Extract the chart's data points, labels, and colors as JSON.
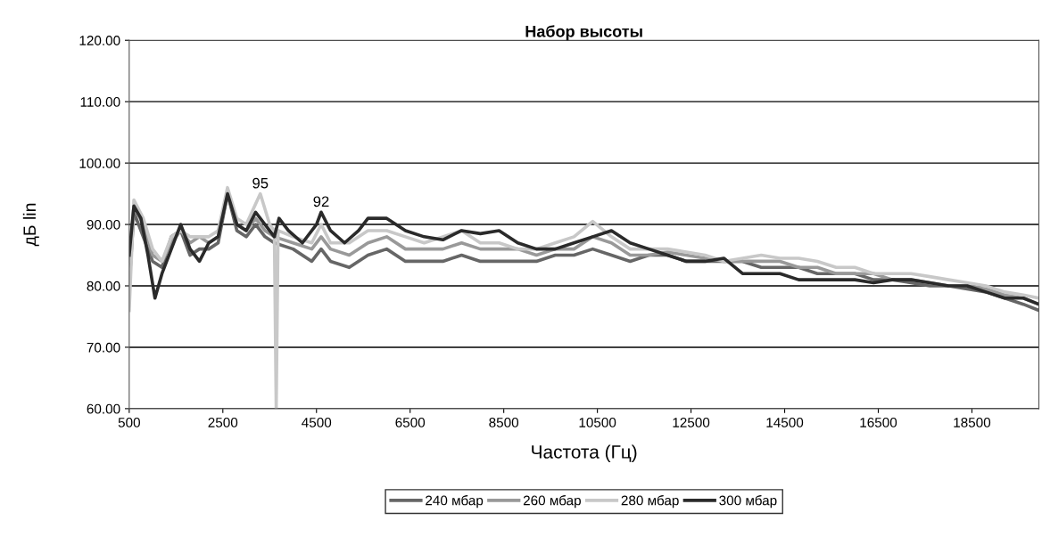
{
  "chart_data": {
    "type": "line",
    "title": "Набор высоты",
    "xlabel": "Частота (Гц)",
    "ylabel": "дБ lin",
    "xlim": [
      500,
      19930
    ],
    "xticks": [
      500,
      2500,
      4500,
      6500,
      8500,
      10500,
      12500,
      14500,
      16500,
      18500
    ],
    "ylim": [
      60,
      120
    ],
    "yticks": [
      {
        "value": 60,
        "label": "60.00"
      },
      {
        "value": 70,
        "label": "70.00"
      },
      {
        "value": 80,
        "label": "80.00"
      },
      {
        "value": 90,
        "label": "90.00"
      },
      {
        "value": 100,
        "label": "100.00"
      },
      {
        "value": 110,
        "label": "110.00"
      },
      {
        "value": 120,
        "label": "120.00"
      }
    ],
    "grid": "y",
    "legend": "bottom",
    "marker": "none",
    "line_style": "solid",
    "annotations": [
      {
        "text": "95",
        "x": 3300,
        "y": 95
      },
      {
        "text": "92",
        "x": 4600,
        "y": 92
      }
    ],
    "series": [
      {
        "name": "240 мбар",
        "color": "#666666",
        "x": [
          500,
          600,
          800,
          1000,
          1200,
          1400,
          1600,
          1800,
          2000,
          2200,
          2400,
          2600,
          2800,
          3000,
          3200,
          3400,
          3600,
          4000,
          4400,
          4600,
          4800,
          5200,
          5600,
          6000,
          6400,
          6800,
          7200,
          7600,
          8000,
          8400,
          8800,
          9200,
          9600,
          10000,
          10400,
          10800,
          11200,
          11600,
          12000,
          12400,
          12800,
          13200,
          13600,
          14000,
          14400,
          14800,
          15200,
          15600,
          16000,
          16400,
          16800,
          17200,
          17600,
          18000,
          18400,
          18800,
          19200,
          19600,
          19930
        ],
        "values": [
          80,
          92,
          88,
          84,
          83,
          88,
          89,
          85,
          86,
          86,
          87,
          95,
          89,
          88,
          90,
          88,
          87,
          86,
          84,
          86,
          84,
          83,
          85,
          86,
          84,
          84,
          84,
          85,
          84,
          84,
          84,
          84,
          85,
          85,
          86,
          85,
          84,
          85,
          85,
          84,
          84,
          84,
          84,
          83,
          83,
          83,
          82,
          82,
          82,
          81,
          81,
          80.5,
          80,
          80,
          79.5,
          79,
          78,
          77,
          76
        ]
      },
      {
        "name": "260 мбар",
        "color": "#999999",
        "x": [
          500,
          600,
          800,
          1000,
          1200,
          1400,
          1600,
          1800,
          2000,
          2200,
          2400,
          2600,
          2800,
          3000,
          3200,
          3400,
          3600,
          4000,
          4400,
          4600,
          4800,
          5200,
          5600,
          6000,
          6400,
          6800,
          7200,
          7600,
          8000,
          8400,
          8800,
          9200,
          9600,
          10000,
          10400,
          10800,
          11200,
          11600,
          12000,
          12400,
          12800,
          13200,
          13600,
          14000,
          14400,
          14800,
          15200,
          15600,
          16000,
          16400,
          16800,
          17200,
          17600,
          18000,
          18400,
          18800,
          19200,
          19600,
          19930
        ],
        "values": [
          84,
          93,
          90,
          85,
          84,
          87,
          89,
          87,
          88,
          87,
          88,
          95,
          90,
          89,
          91,
          89,
          88,
          87,
          86,
          88,
          86,
          85,
          87,
          88,
          86,
          86,
          86,
          87,
          86,
          86,
          86,
          85,
          86,
          86,
          88,
          87,
          85,
          85,
          85.5,
          85,
          84.5,
          84,
          84,
          84,
          84,
          83,
          83,
          82,
          82,
          82,
          81,
          81,
          80.5,
          80,
          80,
          79.5,
          78.5,
          78,
          77
        ]
      },
      {
        "name": "280 мбар",
        "color": "#c8c8c8",
        "x": [
          500,
          600,
          800,
          1000,
          1200,
          1400,
          1600,
          1800,
          2000,
          2200,
          2400,
          2600,
          2800,
          3000,
          3300,
          3500,
          3600,
          3640,
          3680,
          4000,
          4400,
          4600,
          4800,
          5200,
          5600,
          6000,
          6400,
          6800,
          7200,
          7600,
          8000,
          8400,
          8800,
          9200,
          9600,
          10000,
          10400,
          10800,
          11200,
          11600,
          12000,
          12400,
          12800,
          13200,
          13600,
          14000,
          14400,
          14800,
          15200,
          15600,
          16000,
          16400,
          16800,
          17200,
          17600,
          18000,
          18400,
          18800,
          19200,
          19600,
          19930
        ],
        "values": [
          76,
          94,
          91,
          86,
          84,
          88,
          89,
          88,
          88,
          88,
          89,
          96,
          91,
          90,
          95,
          90,
          89,
          60,
          89,
          88,
          87,
          90,
          87,
          87,
          89,
          89,
          88,
          87,
          88,
          89,
          87,
          87,
          86,
          86,
          87,
          88,
          90.5,
          88,
          86,
          86,
          86,
          85.5,
          85,
          84,
          84.5,
          85,
          84.5,
          84.5,
          84,
          83,
          83,
          82,
          82,
          82,
          81.5,
          81,
          80.5,
          80,
          79,
          78.5,
          78
        ]
      },
      {
        "name": "300 мбар",
        "color": "#2a2a2a",
        "x": [
          500,
          600,
          750,
          900,
          1050,
          1200,
          1400,
          1600,
          1800,
          2000,
          2200,
          2400,
          2600,
          2800,
          3000,
          3200,
          3400,
          3600,
          3700,
          3900,
          4200,
          4500,
          4600,
          4800,
          5100,
          5400,
          5600,
          6000,
          6400,
          6800,
          7200,
          7600,
          8000,
          8400,
          8800,
          9200,
          9600,
          10000,
          10400,
          10800,
          11200,
          11600,
          12000,
          12400,
          12800,
          13200,
          13600,
          14000,
          14400,
          14800,
          15200,
          15600,
          16000,
          16400,
          16800,
          17200,
          17600,
          18000,
          18400,
          18800,
          19200,
          19600,
          19930
        ],
        "values": [
          85,
          93,
          91,
          85,
          78,
          82,
          86,
          90,
          86,
          84,
          87,
          88,
          95,
          90,
          89,
          92,
          90,
          88,
          91,
          89,
          87,
          90,
          92,
          89,
          87,
          89,
          91,
          91,
          89,
          88,
          87.5,
          89,
          88.5,
          89,
          87,
          86,
          86,
          87,
          88,
          89,
          87,
          86,
          85,
          84,
          84,
          84.5,
          82,
          82,
          82,
          81,
          81,
          81,
          81,
          80.5,
          81,
          81,
          80.5,
          80,
          80,
          79,
          78,
          78,
          77
        ]
      }
    ]
  }
}
